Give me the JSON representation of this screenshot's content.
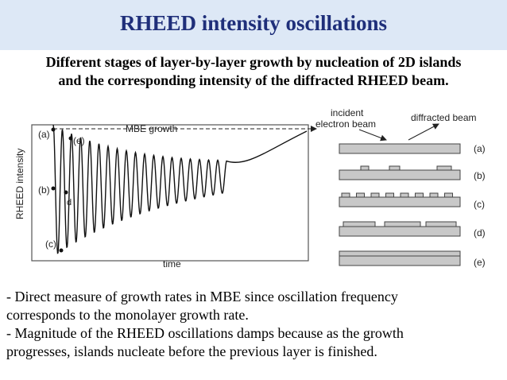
{
  "title": "RHEED intensity oscillations",
  "subtitle": {
    "line1": "Different stages of layer-by-layer growth by nucleation of 2D islands",
    "line2": "and the corresponding intensity of the diffracted RHEED beam."
  },
  "plot": {
    "ylabel": "RHEED intensity",
    "xlabel": "time",
    "region_label": "MBE growth",
    "point_labels": [
      "(a)",
      "(b)",
      "(c)",
      "(e)",
      "d"
    ]
  },
  "schematic": {
    "incident_label_1": "incident",
    "incident_label_2": "electron beam",
    "diffracted_label": "diffracted beam",
    "stage_labels": [
      "(a)",
      "(b)",
      "(c)",
      "(d)",
      "(e)"
    ]
  },
  "bullets": {
    "b1_line1": "- Direct measure of growth rates in MBE since oscillation frequency",
    "b1_line2": "corresponds to the monolayer growth rate.",
    "b2_line1": "- Magnitude of the RHEED oscillations damps because as the growth",
    "b2_line2": "progresses, islands nucleate before the previous layer is finished."
  }
}
